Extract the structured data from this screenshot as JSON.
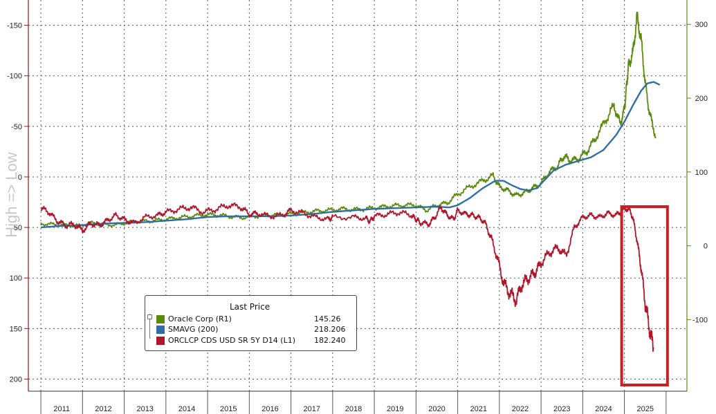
{
  "chart_data": {
    "type": "line",
    "x_axis": {
      "tick_labels": [
        "2011",
        "2012",
        "2013",
        "2014",
        "2015",
        "2016",
        "2017",
        "2018",
        "2019",
        "2020",
        "2021",
        "2022",
        "2023",
        "2024",
        "2025"
      ]
    },
    "y_axis_left": {
      "label": "High => Low",
      "inverted": true,
      "range": [
        -175,
        212
      ],
      "ticks": [
        -150,
        -100,
        -50,
        0,
        50,
        100,
        150,
        200
      ],
      "tick_labels": [
        "-150",
        "-100",
        "-50",
        "0",
        "50",
        "100",
        "150",
        "200"
      ]
    },
    "y_axis_right": {
      "range": [
        -197,
        333
      ],
      "ticks": [
        -100,
        0,
        100,
        200,
        300
      ],
      "tick_labels": [
        "-100",
        "0",
        "100",
        "200",
        "300"
      ]
    },
    "legend": {
      "title": "Last Price",
      "placement": "bottom-left",
      "entries": [
        {
          "name": "Oracle Corp  (R1)",
          "value": "145.26",
          "color": "#5a8a0a"
        },
        {
          "name": "SMAVG (200)",
          "value": "218.206",
          "color": "#2e6ea6"
        },
        {
          "name": "ORCLCP CDS USD SR 5Y D14  (L1)",
          "value": "182.240",
          "color": "#b0162c"
        }
      ]
    },
    "series": [
      {
        "name": "Oracle Corp  (R1)",
        "axis": "right",
        "color": "#5a8a0a",
        "x": [
          2011.0,
          2011.3,
          2011.6,
          2011.9,
          2012.2,
          2012.5,
          2012.8,
          2013.1,
          2013.4,
          2013.7,
          2014.0,
          2014.3,
          2014.6,
          2014.9,
          2015.2,
          2015.5,
          2015.8,
          2016.1,
          2016.4,
          2016.7,
          2017.0,
          2017.3,
          2017.6,
          2017.9,
          2018.2,
          2018.5,
          2018.8,
          2019.1,
          2019.4,
          2019.7,
          2020.0,
          2020.25,
          2020.5,
          2020.75,
          2021.0,
          2021.3,
          2021.6,
          2021.85,
          2022.0,
          2022.2,
          2022.4,
          2022.6,
          2022.8,
          2023.0,
          2023.2,
          2023.4,
          2023.55,
          2023.7,
          2023.9,
          2024.1,
          2024.3,
          2024.55,
          2024.75,
          2024.9,
          2025.0,
          2025.05,
          2025.1,
          2025.2,
          2025.3,
          2025.4,
          2025.5,
          2025.6,
          2025.75
        ],
        "y": [
          30,
          29,
          28,
          27,
          31,
          29,
          28,
          32,
          33,
          34,
          36,
          38,
          40,
          42,
          42,
          40,
          38,
          40,
          41,
          42,
          43,
          45,
          47,
          48,
          50,
          49,
          50,
          52,
          54,
          55,
          55,
          48,
          55,
          58,
          70,
          80,
          88,
          95,
          80,
          75,
          68,
          72,
          78,
          85,
          100,
          108,
          122,
          115,
          118,
          128,
          145,
          170,
          190,
          165,
          185,
          215,
          245,
          260,
          310,
          280,
          220,
          180,
          148
        ],
        "last_value": 145.26
      },
      {
        "name": "SMAVG (200)",
        "axis": "right",
        "color": "#2e6ea6",
        "x": [
          2011.0,
          2011.5,
          2012.0,
          2012.5,
          2013.0,
          2013.5,
          2014.0,
          2014.5,
          2015.0,
          2015.5,
          2016.0,
          2016.5,
          2017.0,
          2017.5,
          2018.0,
          2018.5,
          2019.0,
          2019.5,
          2020.0,
          2020.5,
          2020.8,
          2021.0,
          2021.3,
          2021.6,
          2021.9,
          2022.1,
          2022.3,
          2022.5,
          2022.7,
          2022.9,
          2023.1,
          2023.3,
          2023.6,
          2023.9,
          2024.2,
          2024.5,
          2024.8,
          2025.0,
          2025.2,
          2025.4,
          2025.55,
          2025.7,
          2025.85
        ],
        "y": [
          25,
          27,
          28,
          30,
          31,
          32,
          34,
          36,
          39,
          40,
          40,
          40,
          41,
          43,
          46,
          48,
          50,
          51,
          52,
          53,
          52,
          55,
          65,
          78,
          88,
          88,
          82,
          77,
          75,
          78,
          90,
          102,
          110,
          115,
          120,
          130,
          150,
          168,
          190,
          210,
          220,
          222,
          218
        ],
        "last_value": 218.206
      },
      {
        "name": "ORCLCP CDS USD SR 5Y D14  (L1)",
        "axis": "left",
        "color": "#b0162c",
        "x": [
          2011.0,
          2011.2,
          2011.4,
          2011.6,
          2011.8,
          2012.0,
          2012.2,
          2012.4,
          2012.6,
          2012.8,
          2013.0,
          2013.2,
          2013.5,
          2013.8,
          2014.0,
          2014.3,
          2014.6,
          2014.9,
          2015.2,
          2015.5,
          2015.8,
          2016.0,
          2016.2,
          2016.5,
          2016.8,
          2017.0,
          2017.3,
          2017.6,
          2017.9,
          2018.0,
          2018.5,
          2018.8,
          2018.9,
          2019.0,
          2019.3,
          2019.6,
          2019.9,
          2020.0,
          2020.1,
          2020.3,
          2020.45,
          2020.6,
          2020.75,
          2020.9,
          2021.0,
          2021.2,
          2021.35,
          2021.5,
          2021.65,
          2021.8,
          2021.95,
          2022.1,
          2022.25,
          2022.4,
          2022.55,
          2022.7,
          2022.85,
          2023.0,
          2023.2,
          2023.4,
          2023.6,
          2023.8,
          2024.0,
          2024.2,
          2024.4,
          2024.6,
          2024.8,
          2024.95,
          2025.1,
          2025.2,
          2025.3,
          2025.4,
          2025.5,
          2025.6,
          2025.7
        ],
        "y": [
          31,
          35,
          44,
          48,
          47,
          53,
          46,
          48,
          43,
          38,
          42,
          46,
          40,
          38,
          35,
          32,
          30,
          35,
          32,
          28,
          30,
          37,
          36,
          39,
          38,
          33,
          36,
          40,
          42,
          40,
          40,
          41,
          44,
          39,
          37,
          35,
          38,
          42,
          45,
          47,
          40,
          30,
          38,
          42,
          33,
          37,
          38,
          40,
          45,
          60,
          80,
          105,
          115,
          122,
          106,
          100,
          95,
          85,
          75,
          70,
          78,
          50,
          40,
          38,
          40,
          36,
          38,
          33,
          31,
          40,
          62,
          90,
          125,
          150,
          170
        ],
        "last_value": 182.24
      }
    ],
    "annotations": [
      {
        "type": "highlight-box",
        "color": "#cc1f1f",
        "x_range": [
          2025.0,
          2025.8
        ]
      }
    ],
    "grid": true
  }
}
